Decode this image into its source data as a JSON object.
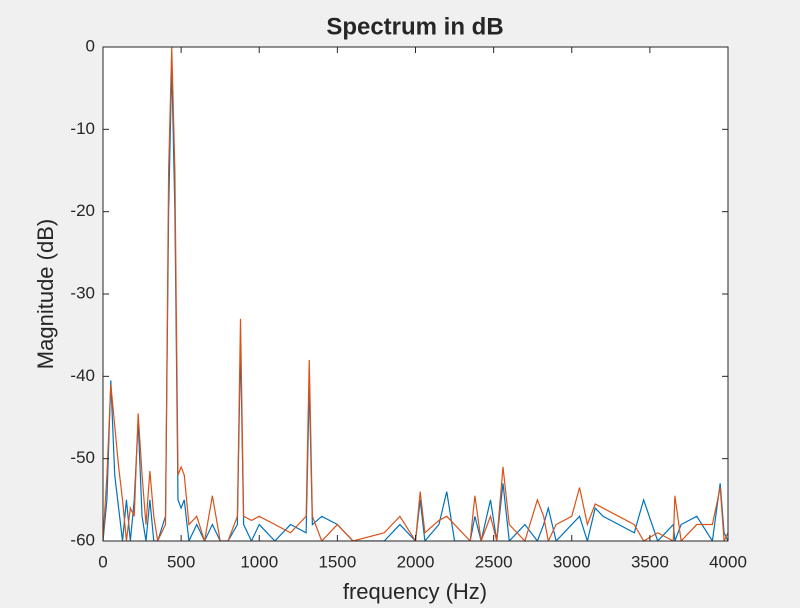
{
  "chart_data": {
    "type": "line",
    "title": "Spectrum in dB",
    "xlabel": "frequency (Hz)",
    "ylabel": "Magnitude (dB)",
    "x": [
      0,
      25,
      50,
      75,
      100,
      125,
      150,
      175,
      200,
      225,
      250,
      275,
      300,
      325,
      350,
      400,
      420,
      440,
      460,
      480,
      500,
      520,
      550,
      600,
      650,
      700,
      750,
      800,
      860,
      880,
      900,
      950,
      1000,
      1100,
      1200,
      1300,
      1320,
      1340,
      1400,
      1500,
      1600,
      1800,
      1900,
      2000,
      2030,
      2060,
      2150,
      2200,
      2250,
      2350,
      2380,
      2420,
      2480,
      2520,
      2560,
      2600,
      2700,
      2780,
      2820,
      2850,
      2900,
      3000,
      3050,
      3100,
      3150,
      3200,
      3300,
      3400,
      3460,
      3550,
      3650,
      3660,
      3700,
      3800,
      3900,
      3950,
      3975,
      4000
    ],
    "series": [
      {
        "color": "#0072bd",
        "values": [
          -60,
          -55,
          -40.5,
          -52,
          -56,
          -60,
          -55,
          -60,
          -55,
          -45.5,
          -57,
          -60,
          -55,
          -60,
          -60,
          -57,
          -20,
          -2,
          -20,
          -55,
          -56,
          -55,
          -60,
          -58,
          -60,
          -58,
          -60,
          -60,
          -58,
          -36,
          -58,
          -60,
          -58,
          -60,
          -58,
          -59,
          -41,
          -58,
          -57,
          -58,
          -60,
          -60,
          -58,
          -60,
          -55,
          -60,
          -58,
          -54,
          -60,
          -60,
          -57,
          -60,
          -55,
          -60,
          -53,
          -60,
          -58,
          -60,
          -58,
          -56,
          -60,
          -58,
          -57,
          -60,
          -56,
          -57,
          -58,
          -59,
          -55,
          -60,
          -58,
          -60,
          -58,
          -57,
          -60,
          -53,
          -59,
          -60
        ]
      },
      {
        "color": "#d95319",
        "values": [
          -60,
          -52,
          -41,
          -46,
          -51,
          -55,
          -60,
          -56,
          -57,
          -44.5,
          -52,
          -58,
          -51.5,
          -57,
          -60,
          -58,
          -15,
          0,
          -15,
          -52,
          -51,
          -52,
          -58,
          -57,
          -60,
          -54.5,
          -60,
          -60,
          -57,
          -33,
          -57,
          -57.5,
          -57,
          -58,
          -59,
          -57,
          -38,
          -57,
          -60,
          -58,
          -60,
          -59,
          -57,
          -60,
          -54,
          -59,
          -57.5,
          -57,
          -58,
          -60,
          -54.5,
          -60,
          -57,
          -60,
          -51,
          -58,
          -60,
          -55,
          -57,
          -60,
          -58,
          -57,
          -53.5,
          -58,
          -55.5,
          -56,
          -57,
          -58,
          -60,
          -59,
          -60,
          -54.5,
          -60,
          -58,
          -58,
          -53.5,
          -60,
          -59
        ]
      }
    ],
    "xlim": [
      0,
      4000
    ],
    "xticks": [
      0,
      500,
      1000,
      1500,
      2000,
      2500,
      3000,
      3500,
      4000
    ],
    "ylim": [
      -60,
      0
    ],
    "yticks": [
      -60,
      -50,
      -40,
      -30,
      -20,
      -10,
      0
    ]
  }
}
